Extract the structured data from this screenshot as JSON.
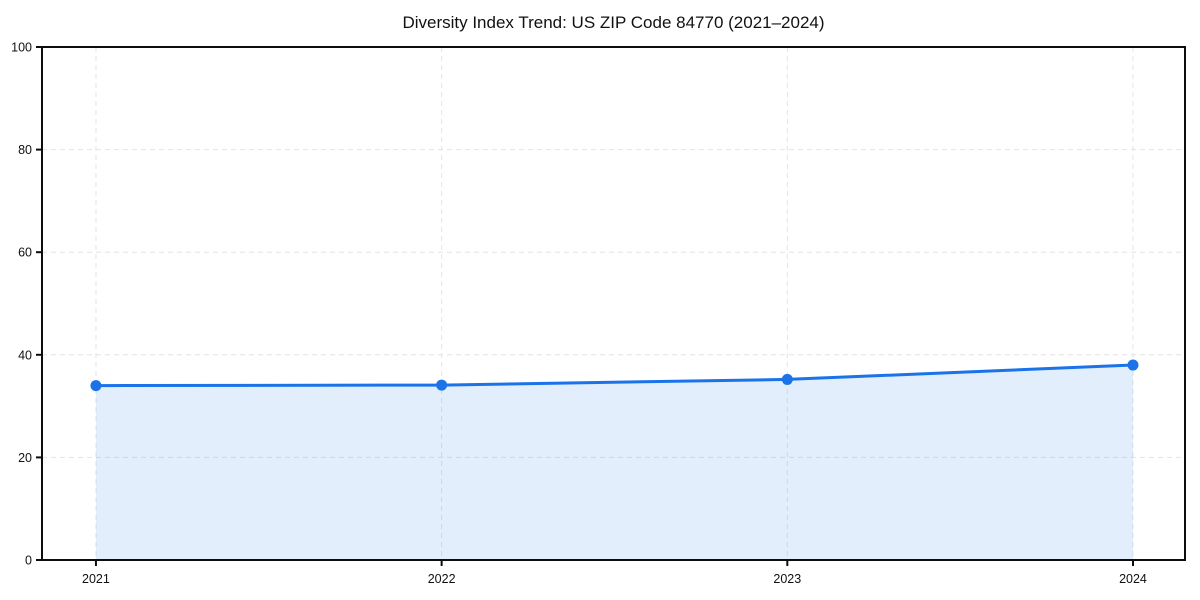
{
  "page": {
    "background_color": "#ffffff"
  },
  "chart_data": {
    "type": "area",
    "title": "Diversity Index Trend: US ZIP Code 84770 (2021–2024)",
    "categories": [
      "2021",
      "2022",
      "2023",
      "2024"
    ],
    "values": [
      34.0,
      34.1,
      35.2,
      38.0
    ],
    "xlabel": "",
    "ylabel": "",
    "ylim": [
      0,
      100
    ],
    "yticks": [
      0,
      20,
      40,
      60,
      80,
      100
    ],
    "grid": true,
    "legend_position": "none",
    "line_color": "#1a73e8",
    "fill_color": "rgba(26,115,232,0.12)",
    "marker_color": "#1a73e8",
    "grid_color": "#e4e4e4",
    "axis_color": "#0d0d0d",
    "text_color": "#111111",
    "line_width": 3,
    "marker_radius": 5.5
  }
}
